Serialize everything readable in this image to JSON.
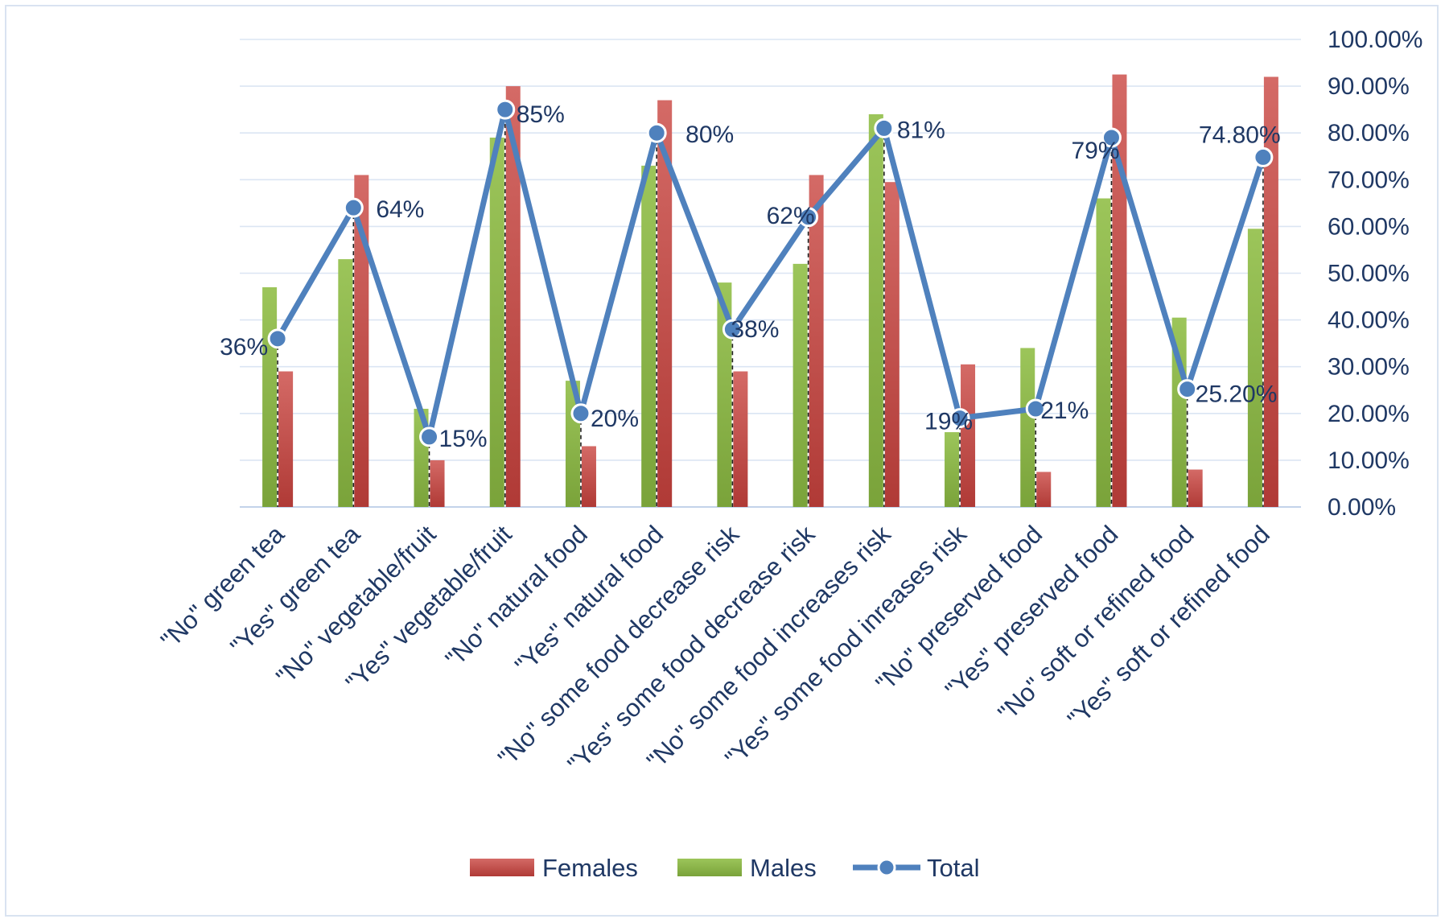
{
  "chart_data": {
    "type": "bar",
    "title": "",
    "xlabel": "",
    "ylabel": "",
    "ylim": [
      0,
      100
    ],
    "grid": true,
    "legend_position": "bottom",
    "y_ticks": [
      "0.00%",
      "10.00%",
      "20.00%",
      "30.00%",
      "40.00%",
      "50.00%",
      "60.00%",
      "70.00%",
      "80.00%",
      "90.00%",
      "100.00%"
    ],
    "categories": [
      "\"No\" green tea",
      "\"Yes\" green tea",
      "\"No\" vegetable/fruit",
      "\"Yes\" vegetable/fruit",
      "\"No\" natural food",
      "\"Yes\" natural food",
      "\"No\" some food decrease risk",
      "\"Yes\" some food decrease risk",
      "\"No\" some food increases risk",
      "\"Yes\" some food inreases risk",
      "\"No\" preserved food",
      "\"Yes\" preserved food",
      "\"No\" soft or refined food",
      "\"Yes\" soft or refined food"
    ],
    "series": [
      {
        "name": "Males",
        "kind": "bar",
        "color": "#8fb84a",
        "values": [
          47,
          53,
          21,
          79,
          27,
          73,
          48,
          52,
          84,
          16,
          34,
          66,
          40.5,
          59.5
        ]
      },
      {
        "name": "Females",
        "kind": "bar",
        "color": "#c0504d",
        "values": [
          29,
          71,
          10,
          90,
          13,
          87,
          29,
          71,
          69.5,
          30.5,
          7.5,
          92.5,
          8,
          92
        ]
      },
      {
        "name": "Total",
        "kind": "line",
        "color": "#4f81bd",
        "values": [
          36,
          64,
          15,
          85,
          20,
          80,
          38,
          62,
          81,
          19,
          21,
          79,
          25.2,
          74.8
        ],
        "labels": [
          "36%",
          "64%",
          "15%",
          "85%",
          "20%",
          "80%",
          "38%",
          "62%",
          "81%",
          "19%",
          "21%",
          "79%",
          "25.20%",
          "74.80%"
        ]
      }
    ],
    "legend": [
      "Females",
      "Males",
      "Total"
    ]
  }
}
